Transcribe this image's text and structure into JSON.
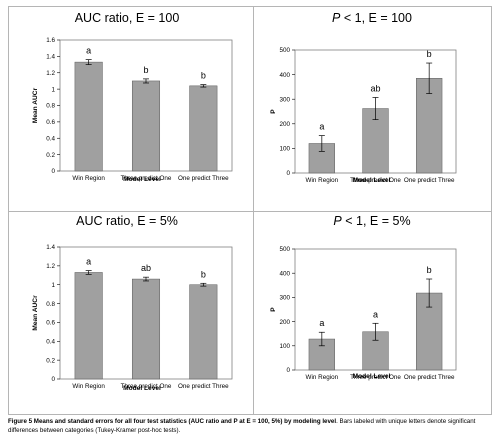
{
  "caption": {
    "bold": "Figure 5 Means and standard errors for all four test statistics (AUC ratio and P at E = 100, 5%) by modeling level",
    "rest": ". Bars labeled with unique letters denote significant differences between categories (Tukey-Kramer post-hoc tests)."
  },
  "colors": {
    "bar": "#a0a0a0",
    "bar_stroke": "#5a5a5a",
    "plot_border": "#808080",
    "grid": "#000000"
  },
  "chart_data": [
    {
      "type": "bar",
      "title": "AUC ratio, E = 100",
      "title_italic": "",
      "title_rest": "",
      "categories": [
        "Win Region",
        "Three predict One",
        "One predict Three"
      ],
      "values": [
        1.33,
        1.1,
        1.04
      ],
      "errors": [
        0.03,
        0.025,
        0.015
      ],
      "sig_letters": [
        "a",
        "b",
        "b"
      ],
      "xlabel": "Model Level",
      "ylabel": "Mean AUCr",
      "ylim": [
        0,
        1.6
      ],
      "yticks": [
        0,
        0.2,
        0.4,
        0.6,
        0.8,
        1,
        1.2,
        1.4,
        1.6
      ],
      "grid": false
    },
    {
      "type": "bar",
      "title": "",
      "title_italic": "P",
      "title_rest": " < 1, E = 100",
      "categories": [
        "Win Region",
        "Three predict One",
        "One predict Three"
      ],
      "values": [
        120,
        262,
        385
      ],
      "errors": [
        32,
        45,
        62
      ],
      "sig_letters": [
        "a",
        "ab",
        "b"
      ],
      "xlabel": "Model Level",
      "ylabel": "P",
      "ylim": [
        0,
        500
      ],
      "yticks": [
        0,
        100,
        200,
        300,
        400,
        500
      ],
      "grid": false
    },
    {
      "type": "bar",
      "title": "AUC ratio, E = 5%",
      "title_italic": "",
      "title_rest": "",
      "categories": [
        "Win Region",
        "Three predict One",
        "One predict Three"
      ],
      "values": [
        1.13,
        1.06,
        1.0
      ],
      "errors": [
        0.02,
        0.02,
        0.015
      ],
      "sig_letters": [
        "a",
        "ab",
        "b"
      ],
      "xlabel": "Model Level",
      "ylabel": "Mean AUCr",
      "ylim": [
        0,
        1.4
      ],
      "yticks": [
        0,
        0.2,
        0.4,
        0.6,
        0.8,
        1,
        1.2,
        1.4
      ],
      "grid": false
    },
    {
      "type": "bar",
      "title": "",
      "title_italic": "P",
      "title_rest": " < 1, E = 5%",
      "categories": [
        "Win Region",
        "Three predict One",
        "One predict Three"
      ],
      "values": [
        128,
        158,
        318
      ],
      "errors": [
        28,
        35,
        58
      ],
      "sig_letters": [
        "a",
        "a",
        "b"
      ],
      "xlabel": "Model Level",
      "ylabel": "P",
      "ylim": [
        0,
        500
      ],
      "yticks": [
        0,
        100,
        200,
        300,
        400,
        500
      ],
      "grid": false
    }
  ]
}
